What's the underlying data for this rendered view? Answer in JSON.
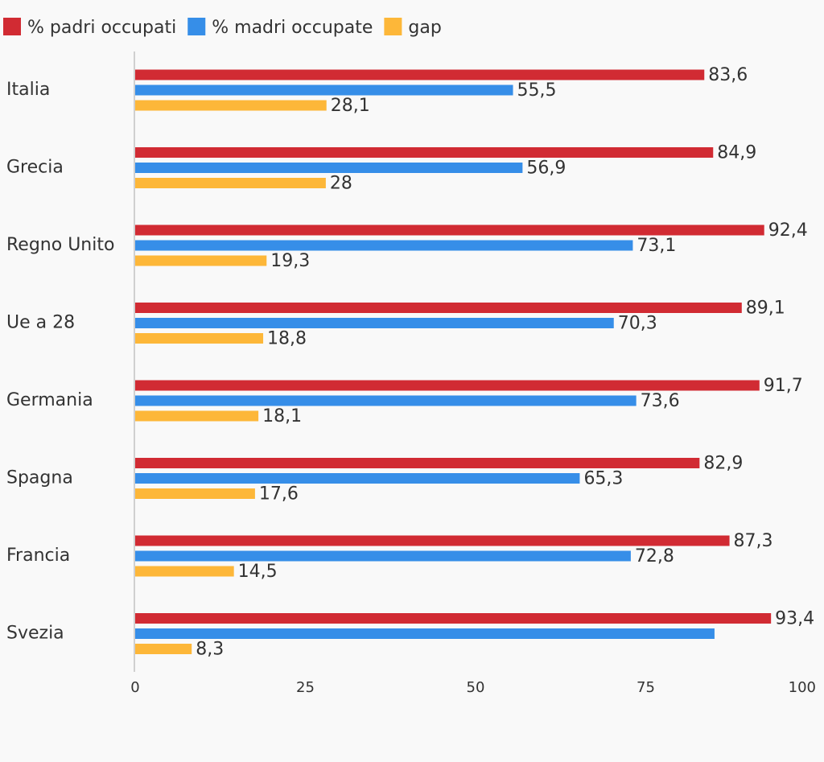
{
  "chart_data": {
    "type": "bar",
    "orientation": "horizontal",
    "categories": [
      "Italia",
      "Grecia",
      "Regno Unito",
      "Ue a 28",
      "Germania",
      "Spagna",
      "Francia",
      "Svezia"
    ],
    "series": [
      {
        "name": "% padri occupati",
        "color": "#d12b33",
        "values": [
          83.6,
          84.9,
          92.4,
          89.1,
          91.7,
          82.9,
          87.3,
          93.4
        ],
        "value_labels": [
          "83,6",
          "84,9",
          "92,4",
          "89,1",
          "91,7",
          "82,9",
          "87,3",
          "93,4"
        ]
      },
      {
        "name": "% madri occupate",
        "color": "#368ee8",
        "values": [
          55.5,
          56.9,
          73.1,
          70.3,
          73.6,
          65.3,
          72.8,
          85.1
        ],
        "value_labels": [
          "55,5",
          "56,9",
          "73,1",
          "70,3",
          "73,6",
          "65,3",
          "72,8",
          null
        ]
      },
      {
        "name": "gap",
        "color": "#fdb739",
        "values": [
          28.1,
          28,
          19.3,
          18.8,
          18.1,
          17.6,
          14.5,
          8.3
        ],
        "value_labels": [
          "28,1",
          "28",
          "19,3",
          "18,8",
          "18,1",
          "17,6",
          "14,5",
          "8,3"
        ]
      }
    ],
    "xlim": [
      0,
      100
    ],
    "xticks": [
      0,
      25,
      50,
      75,
      100
    ],
    "grid": false
  }
}
